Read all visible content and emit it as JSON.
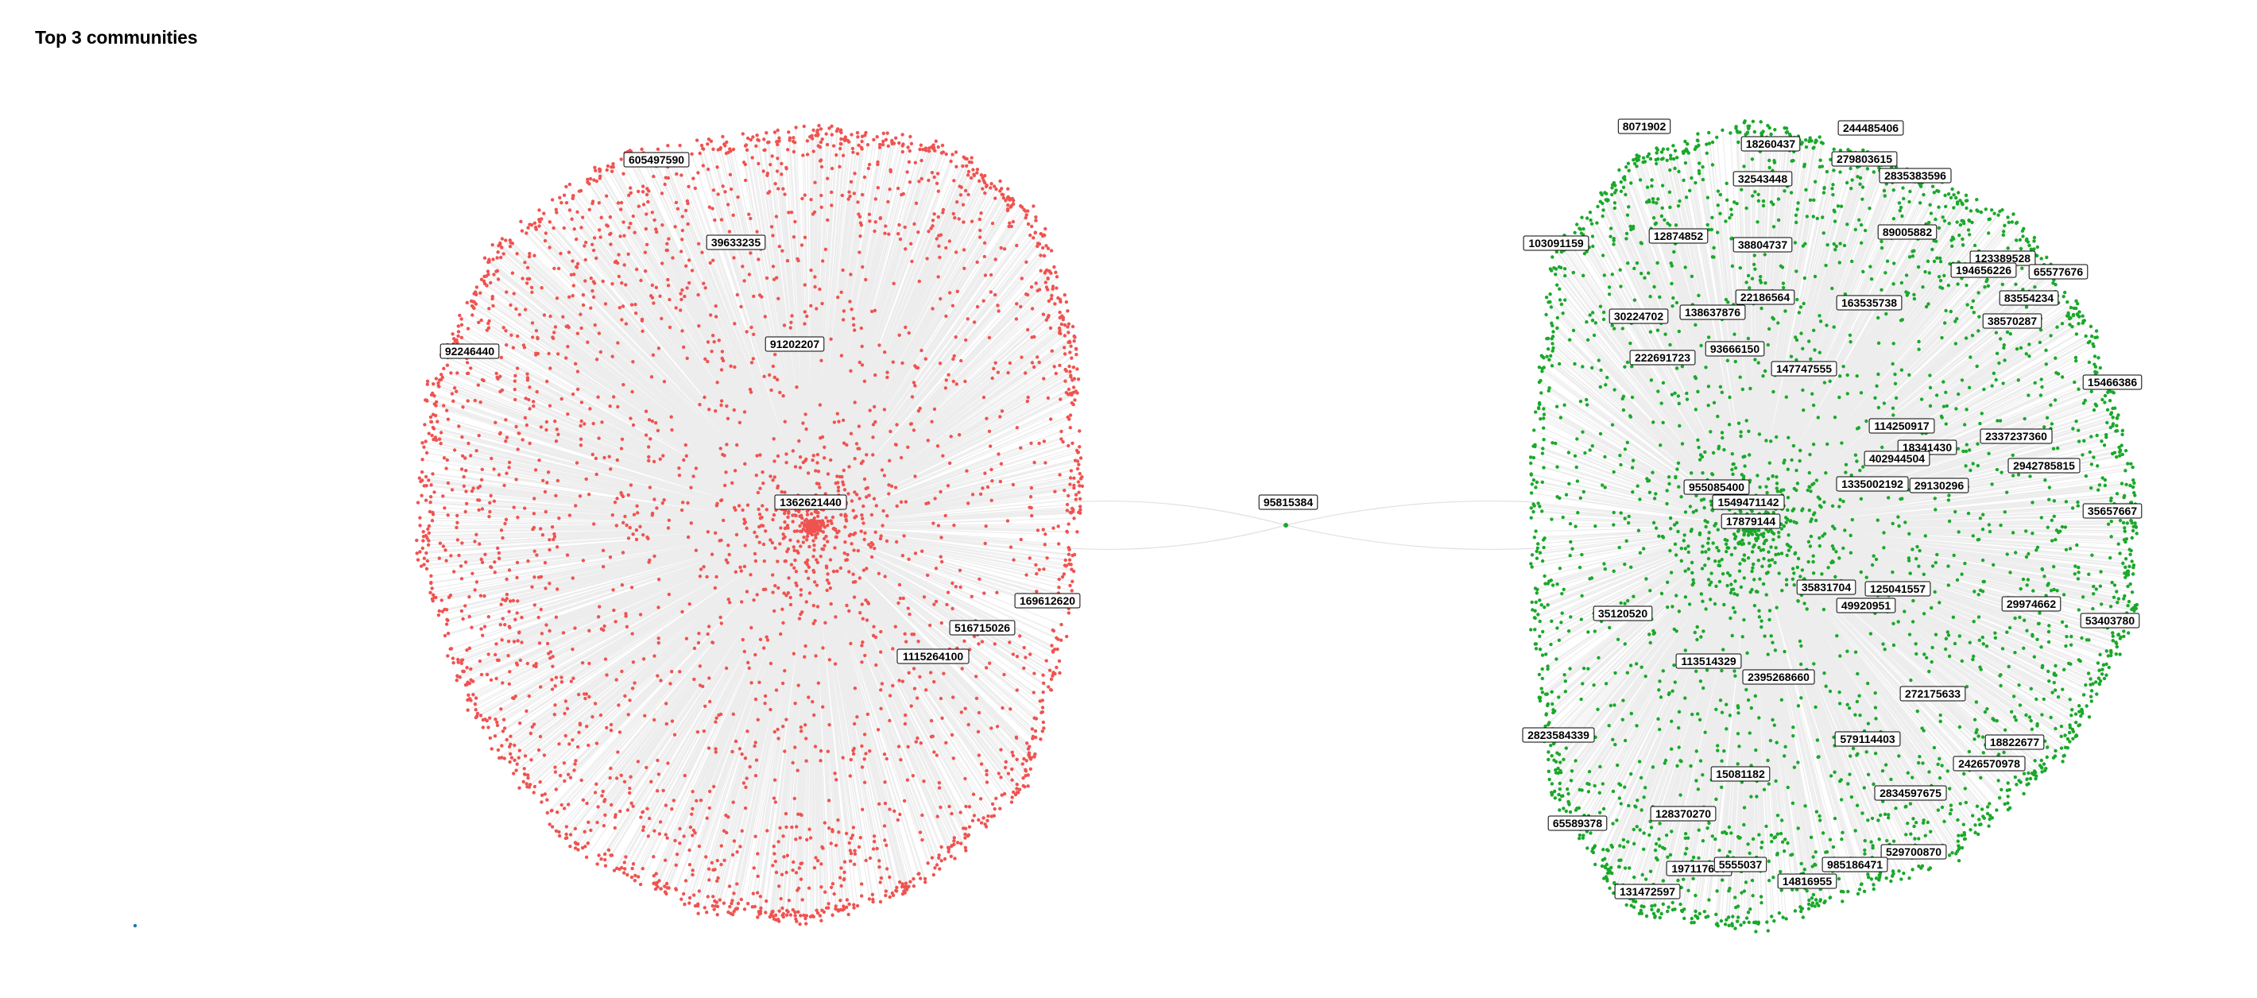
{
  "title": "Top 3 communities",
  "colors": {
    "community_red": "#ef5350",
    "community_green": "#1aa82a",
    "community_blue": "#1f77b4",
    "edge": "#000000",
    "background": "#ffffff"
  },
  "communities": [
    {
      "id": "red",
      "color": "#ef5350",
      "hub_label": "1362621440",
      "labels": [
        "605497590",
        "39633235",
        "91202207",
        "92246440",
        "1362621440",
        "169612620",
        "516715026",
        "1115264100"
      ]
    },
    {
      "id": "green",
      "color": "#1aa82a",
      "hub_label": "17879144",
      "labels": [
        "8071902",
        "244485406",
        "18260437",
        "279803615",
        "2835383596",
        "32543448",
        "103091159",
        "12874852",
        "38804737",
        "89005882",
        "123389528",
        "194656226",
        "65577676",
        "83554234",
        "22186564",
        "138637876",
        "163535738",
        "30224702",
        "38570287",
        "222691723",
        "93666150",
        "147747555",
        "15466386",
        "114250917",
        "18341430",
        "2337237360",
        "402944504",
        "2942785815",
        "29130296",
        "1335002192",
        "955085400",
        "1549471142",
        "17879144",
        "35657667",
        "35831704",
        "125041557",
        "49920951",
        "29974662",
        "35120520",
        "53403780",
        "113514329",
        "2395268660",
        "272175633",
        "2823584339",
        "579114403",
        "18822677",
        "2426570978",
        "15081182",
        "2834597675",
        "128370270",
        "65589378",
        "529700870",
        "197117650",
        "5555037",
        "985186471",
        "14816955",
        "131472597"
      ]
    },
    {
      "id": "bridge",
      "color": "#1aa82a",
      "labels": [
        "95815384"
      ]
    }
  ]
}
